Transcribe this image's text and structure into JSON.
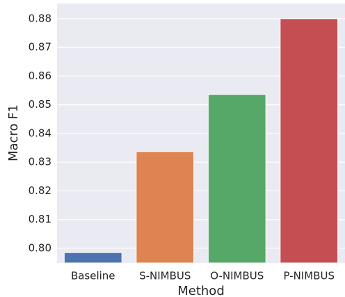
{
  "chart_data": {
    "type": "bar",
    "x_label": "Method",
    "y_label": "Macro F1",
    "categories": [
      "Baseline",
      "S-NIMBUS",
      "O-NIMBUS",
      "P-NIMBUS"
    ],
    "values": [
      0.7985,
      0.8337,
      0.8536,
      0.88
    ],
    "colors": [
      "#4c72b0",
      "#dd8452",
      "#55a868",
      "#c44e52"
    ],
    "ylim": [
      0.7949,
      0.8853
    ],
    "yticks": [
      {
        "value": 0.8,
        "label": "0.80"
      },
      0.81,
      0.82,
      0.83,
      0.84,
      0.85,
      0.86,
      0.87,
      0.88
    ],
    "grid": true
  }
}
